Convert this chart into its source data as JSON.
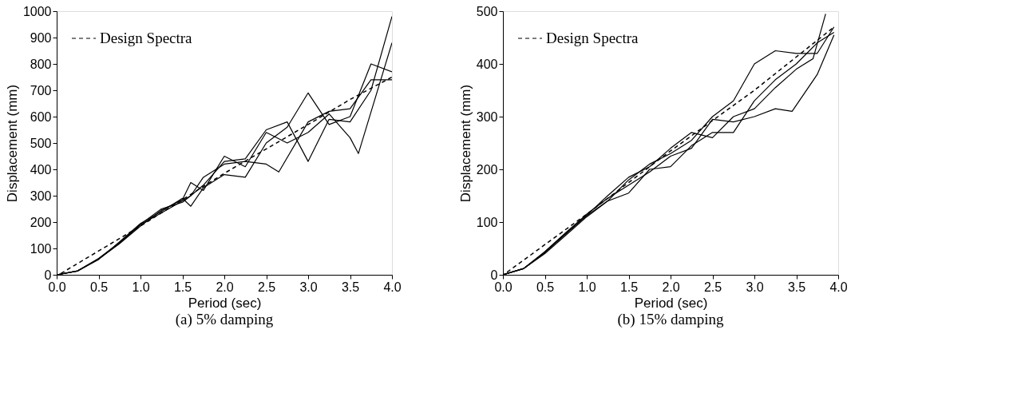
{
  "chart_data": [
    {
      "type": "line",
      "xlabel": "Period (sec)",
      "ylabel": "Displacement (mm)",
      "annotations": [
        "(a)  5% damping"
      ],
      "grid": false,
      "legend": "top left",
      "xlim": [
        0,
        4
      ],
      "ylim": [
        0,
        1000
      ],
      "xticks": [
        {
          "value": 0,
          "label": "0.0"
        },
        {
          "value": 0.5,
          "label": "0.5"
        },
        {
          "value": 1,
          "label": "1.0"
        },
        {
          "value": 1.5,
          "label": "1.5"
        },
        {
          "value": 2,
          "label": "2.0"
        },
        {
          "value": 2.5,
          "label": "2.5"
        },
        {
          "value": 3,
          "label": "3.0"
        },
        {
          "value": 3.5,
          "label": "3.5"
        },
        {
          "value": 4,
          "label": "4.0"
        }
      ],
      "yticks": [
        0,
        100,
        200,
        300,
        400,
        500,
        600,
        700,
        800,
        900,
        1000
      ],
      "series": [
        {
          "name": "Design Spectra",
          "color": "#000000",
          "line_style": "dashed",
          "x": [
            0.05,
            1,
            2,
            3,
            3.5,
            4
          ],
          "values": [
            5,
            185,
            385,
            570,
            665,
            750
          ]
        },
        {
          "color": "#000000",
          "line_style": "solid",
          "x": [
            0,
            0.25,
            0.5,
            0.75,
            1,
            1.25,
            1.5,
            1.6,
            1.75,
            2,
            2.25,
            2.5,
            2.75,
            3,
            3.25,
            3.5,
            3.75,
            4
          ],
          "values": [
            0,
            15,
            60,
            120,
            190,
            235,
            280,
            300,
            340,
            430,
            440,
            550,
            580,
            430,
            590,
            580,
            700,
            980
          ]
        },
        {
          "color": "#000000",
          "line_style": "solid",
          "x": [
            0,
            0.25,
            0.5,
            0.75,
            1,
            1.25,
            1.5,
            1.6,
            1.75,
            2,
            2.25,
            2.5,
            2.75,
            3,
            3.25,
            3.5,
            3.75,
            4
          ],
          "values": [
            0,
            15,
            58,
            125,
            195,
            240,
            290,
            260,
            330,
            380,
            370,
            500,
            560,
            690,
            570,
            600,
            800,
            770
          ]
        },
        {
          "color": "#000000",
          "line_style": "solid",
          "x": [
            0,
            0.25,
            0.5,
            0.75,
            1,
            1.25,
            1.5,
            1.6,
            1.75,
            2,
            2.25,
            2.5,
            2.75,
            3,
            3.25,
            3.5,
            3.6,
            4
          ],
          "values": [
            0,
            14,
            60,
            118,
            185,
            245,
            285,
            350,
            320,
            450,
            410,
            540,
            500,
            540,
            610,
            520,
            460,
            880
          ]
        },
        {
          "color": "#000000",
          "line_style": "solid",
          "x": [
            0,
            0.25,
            0.5,
            0.75,
            1,
            1.25,
            1.5,
            1.6,
            1.75,
            2,
            2.25,
            2.5,
            2.65,
            3,
            3.25,
            3.5,
            3.75,
            4
          ],
          "values": [
            0,
            15,
            62,
            122,
            192,
            250,
            275,
            300,
            370,
            420,
            430,
            420,
            390,
            580,
            620,
            630,
            740,
            740
          ]
        }
      ]
    },
    {
      "type": "line",
      "xlabel": "Period (sec)",
      "ylabel": "Displacement (mm)",
      "annotations": [
        "(b)  15% damping"
      ],
      "grid": false,
      "legend": "top left",
      "xlim": [
        0,
        4
      ],
      "ylim": [
        0,
        500
      ],
      "xticks": [
        {
          "value": 0,
          "label": "0.0"
        },
        {
          "value": 0.5,
          "label": "0.5"
        },
        {
          "value": 1,
          "label": "1.0"
        },
        {
          "value": 1.5,
          "label": "1.5"
        },
        {
          "value": 2,
          "label": "2.0"
        },
        {
          "value": 2.5,
          "label": "2.5"
        },
        {
          "value": 3,
          "label": "3.0"
        },
        {
          "value": 3.5,
          "label": "3.5"
        },
        {
          "value": 4,
          "label": "4.0"
        }
      ],
      "yticks": [
        0,
        100,
        200,
        300,
        400,
        500
      ],
      "series": [
        {
          "name": "Design Spectra",
          "color": "#000000",
          "line_style": "dashed",
          "x": [
            0.05,
            1,
            2,
            3,
            3.95
          ],
          "values": [
            5,
            115,
            235,
            350,
            470
          ]
        },
        {
          "color": "#000000",
          "line_style": "solid",
          "x": [
            0,
            0.25,
            0.5,
            0.75,
            1,
            1.25,
            1.5,
            1.75,
            2,
            2.25,
            2.5,
            2.75,
            3,
            3.25,
            3.5,
            3.75,
            3.95
          ],
          "values": [
            0,
            12,
            42,
            78,
            112,
            140,
            180,
            210,
            230,
            255,
            300,
            330,
            400,
            425,
            420,
            420,
            470
          ]
        },
        {
          "color": "#000000",
          "line_style": "solid",
          "x": [
            0,
            0.25,
            0.5,
            0.75,
            1,
            1.25,
            1.5,
            1.75,
            2,
            2.25,
            2.5,
            2.75,
            3,
            3.25,
            3.5,
            3.75,
            3.95
          ],
          "values": [
            0,
            12,
            40,
            75,
            110,
            140,
            155,
            200,
            205,
            245,
            270,
            270,
            330,
            370,
            400,
            440,
            460
          ]
        },
        {
          "color": "#000000",
          "line_style": "solid",
          "x": [
            0,
            0.25,
            0.5,
            0.75,
            1,
            1.25,
            1.5,
            1.75,
            2,
            2.25,
            2.5,
            2.75,
            3,
            3.25,
            3.45,
            3.75,
            3.95
          ],
          "values": [
            0,
            12,
            44,
            80,
            115,
            145,
            170,
            195,
            225,
            240,
            295,
            290,
            300,
            315,
            310,
            380,
            455
          ]
        },
        {
          "color": "#000000",
          "line_style": "solid",
          "x": [
            0,
            0.25,
            0.5,
            0.75,
            1,
            1.25,
            1.5,
            1.75,
            2,
            2.25,
            2.5,
            2.75,
            3,
            3.25,
            3.5,
            3.7,
            3.85
          ],
          "values": [
            0,
            12,
            43,
            78,
            113,
            150,
            185,
            205,
            240,
            270,
            260,
            300,
            315,
            355,
            390,
            410,
            495
          ]
        }
      ]
    }
  ]
}
